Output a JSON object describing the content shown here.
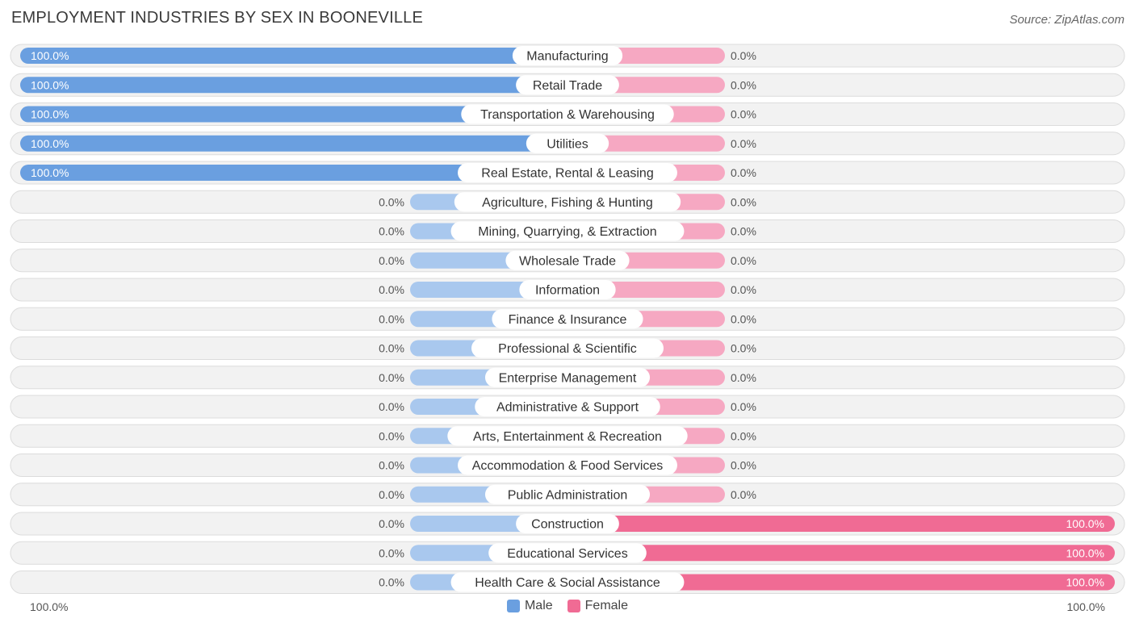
{
  "title": "EMPLOYMENT INDUSTRIES BY SEX IN BOONEVILLE",
  "source": "Source: ZipAtlas.com",
  "colors": {
    "male_strong": "#6a9fe0",
    "male_light": "#a9c8ee",
    "female_strong": "#f06b94",
    "female_light": "#f6a8c2",
    "row_bg": "#f2f2f2",
    "row_border": "#dcdcdc"
  },
  "legend": {
    "male": "Male",
    "female": "Female"
  },
  "axis": {
    "left_label": "100.0%",
    "right_label": "100.0%"
  },
  "chart_data": {
    "type": "bar",
    "orientation": "horizontal-diverging",
    "categories": [
      "Manufacturing",
      "Retail Trade",
      "Transportation & Warehousing",
      "Utilities",
      "Real Estate, Rental & Leasing",
      "Agriculture, Fishing & Hunting",
      "Mining, Quarrying, & Extraction",
      "Wholesale Trade",
      "Information",
      "Finance & Insurance",
      "Professional & Scientific",
      "Enterprise Management",
      "Administrative & Support",
      "Arts, Entertainment & Recreation",
      "Accommodation & Food Services",
      "Public Administration",
      "Construction",
      "Educational Services",
      "Health Care & Social Assistance"
    ],
    "series": [
      {
        "name": "Male",
        "values": [
          100,
          100,
          100,
          100,
          100,
          0,
          0,
          0,
          0,
          0,
          0,
          0,
          0,
          0,
          0,
          0,
          0,
          0,
          0
        ]
      },
      {
        "name": "Female",
        "values": [
          0,
          0,
          0,
          0,
          0,
          0,
          0,
          0,
          0,
          0,
          0,
          0,
          0,
          0,
          0,
          0,
          100,
          100,
          100
        ]
      }
    ],
    "value_labels_male": [
      "100.0%",
      "100.0%",
      "100.0%",
      "100.0%",
      "100.0%",
      "0.0%",
      "0.0%",
      "0.0%",
      "0.0%",
      "0.0%",
      "0.0%",
      "0.0%",
      "0.0%",
      "0.0%",
      "0.0%",
      "0.0%",
      "0.0%",
      "0.0%",
      "0.0%"
    ],
    "value_labels_female": [
      "0.0%",
      "0.0%",
      "0.0%",
      "0.0%",
      "0.0%",
      "0.0%",
      "0.0%",
      "0.0%",
      "0.0%",
      "0.0%",
      "0.0%",
      "0.0%",
      "0.0%",
      "0.0%",
      "0.0%",
      "0.0%",
      "100.0%",
      "100.0%",
      "100.0%"
    ],
    "xlim": [
      -100,
      100
    ],
    "legend_position": "bottom-center"
  }
}
